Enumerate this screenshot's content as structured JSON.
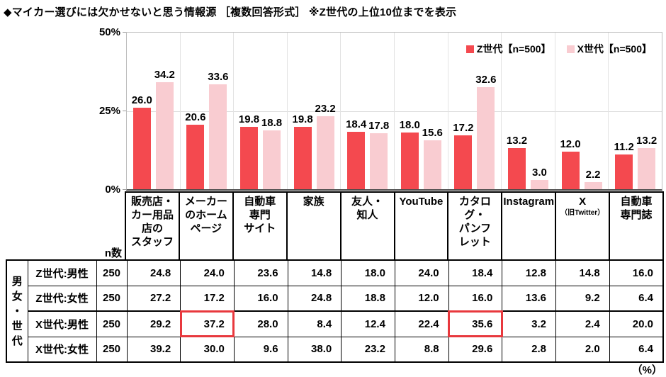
{
  "title": "◆マイカー選びには欠かせないと思う情報源 ［複数回答形式］ ※Z世代の上位10位までを表示",
  "footer_unit": "（%）",
  "colors": {
    "z_series": "#f4494f",
    "x_series": "#f9ccd1",
    "highlight_border": "#e8383d",
    "gridline": "#dcdcdc",
    "axis": "#4a4a4a"
  },
  "chart_data": {
    "type": "bar",
    "title": "マイカー選びには欠かせないと思う情報源（複数回答）",
    "ylabel": "%",
    "ylim": [
      0,
      50
    ],
    "yticks": [
      {
        "label": "50%",
        "value": 50
      },
      {
        "label": "25%",
        "value": 25
      },
      {
        "label": "0%",
        "value": 0
      }
    ],
    "grid": true,
    "legend_position": "top-right",
    "categories": [
      {
        "name": "販売店・カー用品店のスタッフ",
        "lines": [
          "販売店・",
          "カー用品",
          "店の",
          "スタッフ"
        ]
      },
      {
        "name": "メーカーのホームページ",
        "lines": [
          "メーカー",
          "のホーム",
          "ページ"
        ]
      },
      {
        "name": "自動車専門サイト",
        "lines": [
          "自動車",
          "専門",
          "サイト"
        ]
      },
      {
        "name": "家族",
        "lines": [
          "家族"
        ]
      },
      {
        "name": "友人・知人",
        "lines": [
          "友人・",
          "知人"
        ]
      },
      {
        "name": "YouTube",
        "lines": [
          "YouTube"
        ]
      },
      {
        "name": "カタログ・パンフレット",
        "lines": [
          "カタログ・",
          "パンフ",
          "レット"
        ]
      },
      {
        "name": "Instagram",
        "lines": [
          "Instagram"
        ]
      },
      {
        "name": "X（旧Twitter）",
        "lines": [
          "X",
          "（旧Twitter）"
        ]
      },
      {
        "name": "自動車専門誌",
        "lines": [
          "自動車",
          "専門誌"
        ]
      }
    ],
    "series": [
      {
        "name": "Z世代【n=500】",
        "color": "#f4494f",
        "values": [
          26.0,
          20.6,
          19.8,
          19.8,
          18.4,
          18.0,
          17.2,
          13.2,
          12.0,
          11.2
        ]
      },
      {
        "name": "X世代【n=500】",
        "color": "#f9ccd1",
        "values": [
          34.2,
          33.6,
          18.8,
          23.2,
          17.8,
          15.6,
          32.6,
          3.0,
          2.2,
          13.2
        ]
      }
    ]
  },
  "table": {
    "group_label": "男女・世代",
    "n_header": "n数",
    "rows": [
      {
        "label": "Z世代:男性",
        "n": "250",
        "values": [
          24.8,
          24.0,
          23.6,
          14.8,
          18.0,
          24.0,
          18.4,
          12.8,
          14.8,
          16.0
        ],
        "highlight_cols": []
      },
      {
        "label": "Z世代:女性",
        "n": "250",
        "values": [
          27.2,
          17.2,
          16.0,
          24.8,
          18.8,
          12.0,
          16.0,
          13.6,
          9.2,
          6.4
        ],
        "highlight_cols": []
      },
      {
        "label": "X世代:男性",
        "n": "250",
        "values": [
          29.2,
          37.2,
          28.0,
          8.4,
          12.4,
          22.4,
          35.6,
          3.2,
          2.4,
          20.0
        ],
        "highlight_cols": [
          1,
          6
        ]
      },
      {
        "label": "X世代:女性",
        "n": "250",
        "values": [
          39.2,
          30.0,
          9.6,
          38.0,
          23.2,
          8.8,
          29.6,
          2.8,
          2.0,
          6.4
        ],
        "highlight_cols": []
      }
    ]
  }
}
